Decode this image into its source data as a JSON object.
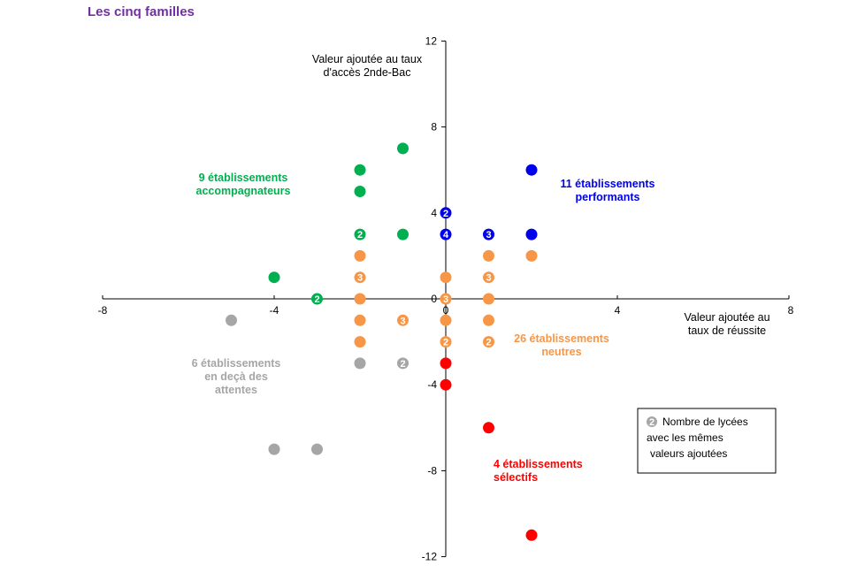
{
  "page": {
    "title": "Les cinq familles"
  },
  "chart_data": {
    "type": "scatter",
    "title": "Les cinq familles",
    "xlabel": "Valeur ajoutée au taux de réussite",
    "ylabel": "Valeur ajoutée au taux d'accès 2nde-Bac",
    "xlabel_lines": [
      "Valeur ajoutée au",
      "taux de réussite"
    ],
    "ylabel_lines": [
      "Valeur ajoutée au taux",
      "d'accès 2nde-Bac"
    ],
    "xlim": [
      -8,
      8
    ],
    "ylim": [
      -12,
      12
    ],
    "x_ticks": [
      -8,
      -4,
      0,
      4,
      8
    ],
    "y_ticks": [
      12,
      8,
      4,
      0,
      -4,
      -8,
      -12
    ],
    "grid": false,
    "series": [
      {
        "key": "green",
        "color": "#00b050",
        "label_lines": [
          "9 établissements",
          "accompagnateurs"
        ],
        "points": [
          [
            -4,
            1,
            ""
          ],
          [
            -3,
            0,
            "2"
          ],
          [
            -2,
            6,
            ""
          ],
          [
            -2,
            5,
            ""
          ],
          [
            -2,
            3,
            "2"
          ],
          [
            -1,
            7,
            ""
          ],
          [
            -1,
            3,
            ""
          ]
        ]
      },
      {
        "key": "blue",
        "color": "#0000ee",
        "label_lines": [
          "11 établissements",
          "performants"
        ],
        "points": [
          [
            0,
            4,
            "2"
          ],
          [
            0,
            3,
            "4"
          ],
          [
            1,
            3,
            "3"
          ],
          [
            2,
            6,
            ""
          ],
          [
            2,
            3,
            ""
          ]
        ]
      },
      {
        "key": "orange",
        "color": "#f79646",
        "label_lines": [
          "26 établissements",
          "neutres"
        ],
        "points": [
          [
            -2,
            2,
            ""
          ],
          [
            -2,
            1,
            "3"
          ],
          [
            -2,
            0,
            ""
          ],
          [
            -2,
            -1,
            ""
          ],
          [
            -2,
            -2,
            ""
          ],
          [
            -1,
            -1,
            "3"
          ],
          [
            0,
            1,
            ""
          ],
          [
            0,
            0,
            "3"
          ],
          [
            0,
            -1,
            ""
          ],
          [
            0,
            -2,
            "2"
          ],
          [
            1,
            2,
            ""
          ],
          [
            1,
            1,
            "3"
          ],
          [
            1,
            0,
            ""
          ],
          [
            1,
            -1,
            ""
          ],
          [
            1,
            -2,
            "2"
          ],
          [
            2,
            2,
            ""
          ]
        ]
      },
      {
        "key": "gray",
        "color": "#a6a6a6",
        "label_lines": [
          "6 établissements",
          "en deçà des",
          "attentes"
        ],
        "points": [
          [
            -5,
            -1,
            ""
          ],
          [
            -2,
            -3,
            ""
          ],
          [
            -1,
            -3,
            "2"
          ],
          [
            -4,
            -7,
            ""
          ],
          [
            -3,
            -7,
            ""
          ]
        ]
      },
      {
        "key": "red",
        "color": "#ff0000",
        "label_lines": [
          "4 établissements",
          "sélectifs"
        ],
        "points": [
          [
            0,
            -3,
            ""
          ],
          [
            0,
            -4,
            ""
          ],
          [
            1,
            -6,
            ""
          ],
          [
            2,
            -11,
            ""
          ]
        ]
      }
    ],
    "legend": {
      "badge": "2",
      "lines": [
        "Nombre de lycées",
        "avec les mêmes",
        "valeurs ajoutées"
      ]
    }
  }
}
